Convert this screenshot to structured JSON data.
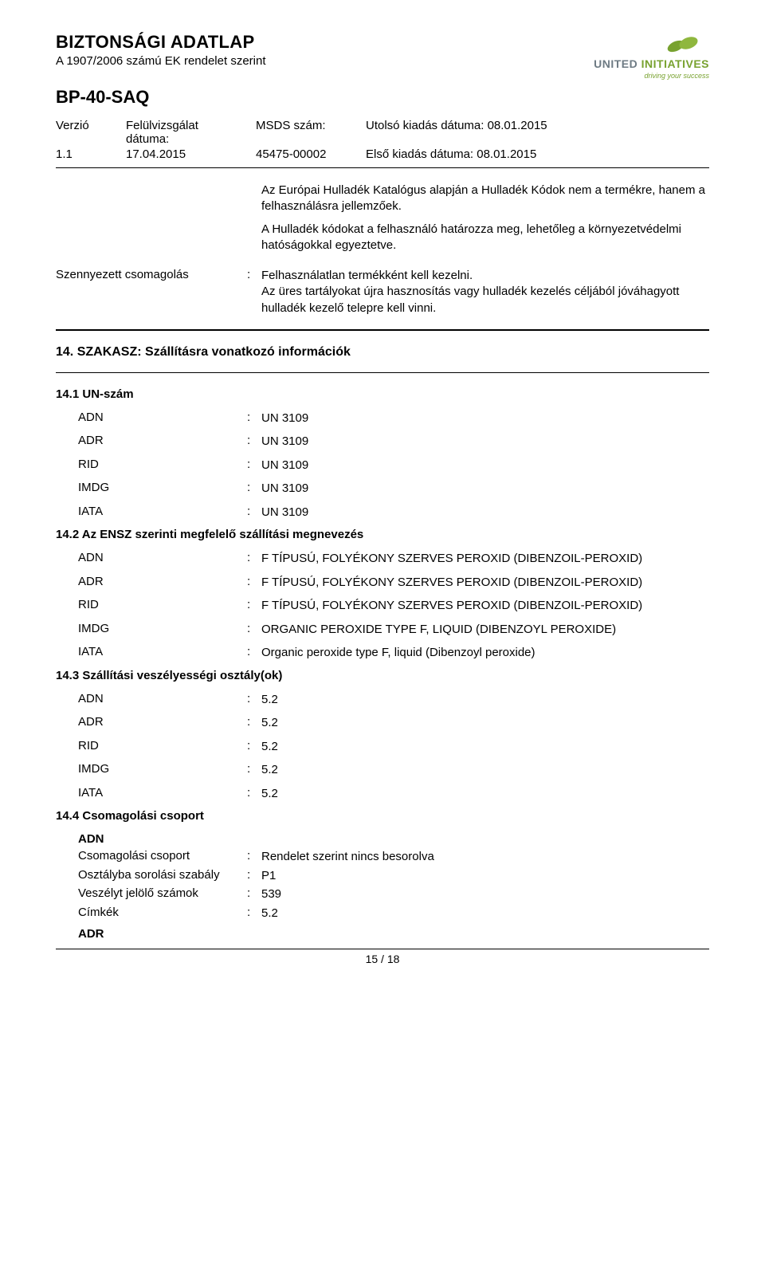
{
  "header": {
    "title": "BIZTONSÁGI ADATLAP",
    "subtitle": "A 1907/2006 számú EK rendelet szerint",
    "product": "BP-40-SAQ",
    "logo": {
      "lineA": "UNITED",
      "lineB": "INITIATIVES",
      "tag": "driving your success"
    }
  },
  "meta": {
    "verzio_label": "Verzió",
    "verzio_val": "1.1",
    "feluviz_label": "Felülvizsgálat dátuma:",
    "feluviz_val": "17.04.2015",
    "msds_label": "MSDS szám:",
    "msds_val": "45475-00002",
    "utolso": "Utolsó kiadás dátuma: 08.01.2015",
    "elso": "Első kiadás dátuma: 08.01.2015"
  },
  "intro": {
    "p1": "Az Európai Hulladék Katalógus alapján a Hulladék Kódok nem a termékre, hanem a felhasználásra jellemzőek.",
    "p2": "A Hulladék kódokat a felhasználó határozza meg, lehetőleg a környezetvédelmi hatóságokkal egyeztetve."
  },
  "row_szenny": {
    "label": "Szennyezett csomagolás",
    "p1": "Felhasználatlan termékként kell kezelni.",
    "p2": "Az üres tartályokat újra hasznosítás vagy hulladék kezelés céljából jóváhagyott hulladék kezelő telepre kell vinni."
  },
  "s14": {
    "title": "14. SZAKASZ: Szállításra vonatkozó információk",
    "un": {
      "title": "14.1 UN-szám",
      "items": [
        {
          "k": "ADN",
          "v": "UN 3109"
        },
        {
          "k": "ADR",
          "v": "UN 3109"
        },
        {
          "k": "RID",
          "v": "UN 3109"
        },
        {
          "k": "IMDG",
          "v": "UN 3109"
        },
        {
          "k": "IATA",
          "v": "UN 3109"
        }
      ]
    },
    "ensz": {
      "title": "14.2 Az ENSZ szerinti megfelelő szállítási megnevezés",
      "items": [
        {
          "k": "ADN",
          "v": "F TÍPUSÚ, FOLYÉKONY SZERVES PEROXID (DIBENZOIL-PEROXID)"
        },
        {
          "k": "ADR",
          "v": "F TÍPUSÚ, FOLYÉKONY SZERVES PEROXID (DIBENZOIL-PEROXID)"
        },
        {
          "k": "RID",
          "v": "F TÍPUSÚ, FOLYÉKONY SZERVES PEROXID (DIBENZOIL-PEROXID)"
        },
        {
          "k": "IMDG",
          "v": "ORGANIC PEROXIDE TYPE F, LIQUID (DIBENZOYL PEROXIDE)"
        },
        {
          "k": "IATA",
          "v": "Organic peroxide type F, liquid (Dibenzoyl peroxide)"
        }
      ]
    },
    "hazard": {
      "title": "14.3 Szállítási veszélyességi osztály(ok)",
      "items": [
        {
          "k": "ADN",
          "v": "5.2"
        },
        {
          "k": "ADR",
          "v": "5.2"
        },
        {
          "k": "RID",
          "v": "5.2"
        },
        {
          "k": "IMDG",
          "v": "5.2"
        },
        {
          "k": "IATA",
          "v": "5.2"
        }
      ]
    },
    "pack": {
      "title": "14.4 Csomagolási csoport",
      "adn_label": "ADN",
      "items": [
        {
          "k": "Csomagolási csoport",
          "v": "Rendelet szerint nincs besorolva"
        },
        {
          "k": "Osztályba sorolási szabály",
          "v": "P1"
        },
        {
          "k": "Veszélyt jelölő számok",
          "v": "539"
        },
        {
          "k": "Címkék",
          "v": "5.2"
        }
      ],
      "adr_label": "ADR"
    }
  },
  "footer": {
    "page": "15 / 18"
  }
}
